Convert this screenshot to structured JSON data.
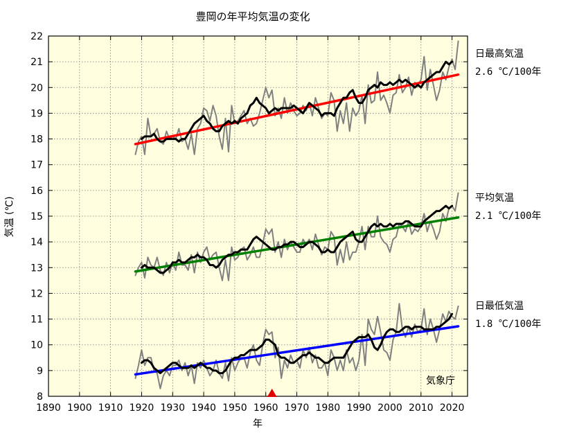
{
  "chart_data": {
    "type": "line",
    "title": "豊岡の年平均気温の変化",
    "xlabel": "年",
    "ylabel": "気温 (℃)",
    "xlim": [
      1890,
      2025
    ],
    "ylim": [
      8,
      22
    ],
    "x_ticks": [
      "1890",
      "1900",
      "1910",
      "1920",
      "1930",
      "1940",
      "1950",
      "1960",
      "1970",
      "1980",
      "1990",
      "2000",
      "2010",
      "2020"
    ],
    "y_ticks": [
      "8",
      "9",
      "10",
      "11",
      "12",
      "13",
      "14",
      "15",
      "16",
      "17",
      "18",
      "19",
      "20",
      "21",
      "22"
    ],
    "grid": true,
    "background_color": "#ffffe0",
    "credit": "気象庁",
    "station_change_marker_year": 1962,
    "marker_color": "#e00000",
    "colors": {
      "annual": "#808080",
      "moving_average": "#000000"
    },
    "series": [
      {
        "name": "日最高気温",
        "rate": "2.6 ℃/100年",
        "trend_color": "#ff0000",
        "annual_years": [
          1918,
          2022
        ],
        "annual": [
          17.4,
          17.9,
          18.1,
          17.4,
          18.8,
          18.1,
          18.2,
          18.4,
          17.9,
          17.8,
          18.3,
          18.0,
          18.1,
          18.0,
          18.4,
          17.9,
          18.0,
          17.6,
          18.2,
          17.4,
          18.4,
          18.6,
          19.2,
          19.1,
          18.7,
          19.3,
          18.9,
          18.1,
          17.6,
          18.8,
          17.5,
          19.3,
          18.6,
          18.7,
          18.9,
          19.1,
          18.6,
          18.8,
          18.5,
          18.6,
          19.0,
          19.5,
          20.0,
          19.6,
          19.9,
          18.9,
          19.2,
          18.8,
          19.6,
          19.0,
          19.4,
          19.1,
          18.9,
          19.0,
          19.3,
          19.1,
          19.4,
          18.9,
          19.6,
          19.2,
          18.8,
          19.0,
          18.9,
          19.8,
          19.5,
          18.3,
          19.1,
          18.6,
          19.4,
          18.3,
          19.2,
          18.9,
          19.1,
          19.7,
          18.6,
          20.1,
          19.4,
          19.5,
          20.6,
          19.5,
          19.7,
          19.4,
          19.0,
          19.7,
          19.8,
          20.5,
          19.8,
          20.0,
          20.4,
          19.7,
          20.2,
          20.1,
          20.3,
          21.2,
          19.9,
          20.7,
          20.1,
          19.5,
          19.9,
          20.6,
          20.3,
          20.8,
          21.1,
          20.7,
          21.8
        ],
        "moving_average_years": [
          1920,
          2020
        ],
        "moving_average": [
          18.0,
          18.1,
          18.1,
          18.1,
          18.2,
          18.0,
          17.9,
          17.9,
          18.0,
          18.0,
          18.0,
          18.0,
          17.9,
          18.0,
          18.0,
          18.2,
          18.4,
          18.6,
          18.7,
          18.8,
          18.9,
          18.7,
          18.6,
          18.4,
          18.3,
          18.3,
          18.5,
          18.6,
          18.7,
          18.6,
          18.7,
          18.6,
          18.8,
          18.9,
          19.0,
          19.3,
          19.4,
          19.6,
          19.4,
          19.3,
          19.2,
          19.0,
          19.1,
          19.2,
          19.1,
          19.2,
          19.2,
          19.2,
          19.2,
          19.3,
          19.2,
          19.1,
          19.0,
          19.2,
          19.4,
          19.3,
          19.2,
          19.1,
          18.9,
          19.0,
          19.0,
          19.0,
          18.9,
          19.2,
          19.4,
          19.6,
          19.6,
          19.8,
          19.9,
          19.6,
          19.4,
          19.4,
          19.6,
          19.9,
          20.0,
          20.1,
          20.0,
          20.2,
          20.1,
          20.1,
          20.2,
          20.1,
          20.2,
          20.3,
          20.2,
          20.3,
          20.2,
          20.1,
          20.0,
          20.1,
          20.0,
          20.2,
          20.3,
          20.4,
          20.5,
          20.6,
          20.6,
          20.8,
          21.0,
          20.9,
          21.0
        ],
        "trend": {
          "x": [
            1918,
            2022
          ],
          "y": [
            17.8,
            20.5
          ]
        }
      },
      {
        "name": "平均気温",
        "rate": "2.1 ℃/100年",
        "trend_color": "#008000",
        "annual_years": [
          1918,
          2022
        ],
        "annual": [
          12.7,
          13.0,
          13.2,
          12.6,
          13.4,
          13.1,
          13.0,
          13.4,
          12.9,
          12.7,
          13.2,
          12.8,
          13.2,
          12.9,
          13.6,
          13.1,
          13.1,
          12.9,
          13.5,
          12.8,
          13.6,
          13.2,
          13.6,
          13.8,
          13.3,
          13.5,
          13.6,
          13.0,
          12.5,
          13.3,
          12.5,
          13.8,
          13.3,
          13.4,
          13.7,
          13.8,
          13.3,
          13.5,
          13.8,
          13.4,
          13.4,
          13.9,
          14.5,
          14.3,
          14.5,
          13.6,
          14.0,
          13.4,
          14.1,
          13.7,
          14.0,
          13.8,
          13.6,
          13.6,
          14.1,
          13.9,
          14.1,
          13.7,
          14.3,
          13.9,
          13.5,
          13.8,
          13.7,
          14.4,
          14.2,
          13.1,
          13.7,
          13.2,
          14.0,
          13.3,
          13.6,
          13.6,
          14.0,
          14.6,
          13.7,
          14.6,
          14.2,
          14.2,
          15.0,
          14.2,
          14.0,
          13.9,
          13.6,
          14.1,
          14.2,
          14.7,
          14.6,
          14.4,
          14.8,
          14.3,
          14.5,
          14.4,
          14.6,
          15.1,
          14.4,
          14.8,
          14.5,
          14.1,
          14.4,
          15.1,
          14.8,
          15.3,
          15.4,
          15.2,
          15.9
        ],
        "moving_average_years": [
          1920,
          2020
        ],
        "moving_average": [
          13.0,
          13.1,
          13.0,
          13.0,
          13.0,
          12.9,
          12.8,
          12.8,
          12.9,
          13.0,
          13.2,
          13.2,
          13.3,
          13.2,
          13.2,
          13.3,
          13.4,
          13.4,
          13.5,
          13.4,
          13.4,
          13.3,
          13.1,
          13.1,
          13.0,
          13.1,
          13.3,
          13.4,
          13.5,
          13.5,
          13.6,
          13.6,
          13.7,
          13.7,
          13.7,
          13.9,
          14.1,
          14.2,
          14.1,
          14.0,
          13.9,
          13.8,
          13.7,
          13.7,
          13.8,
          13.8,
          13.9,
          13.9,
          14.0,
          14.0,
          13.9,
          13.8,
          13.8,
          13.9,
          14.0,
          14.0,
          13.9,
          13.8,
          13.6,
          13.6,
          13.7,
          13.6,
          13.6,
          13.8,
          14.0,
          14.1,
          14.2,
          14.3,
          14.4,
          14.1,
          14.0,
          14.0,
          14.2,
          14.4,
          14.6,
          14.7,
          14.6,
          14.7,
          14.6,
          14.6,
          14.7,
          14.6,
          14.7,
          14.7,
          14.7,
          14.8,
          14.8,
          14.7,
          14.6,
          14.6,
          14.6,
          14.8,
          14.9,
          15.0,
          15.1,
          15.2,
          15.2,
          15.3,
          15.4,
          15.3,
          15.4
        ],
        "trend": {
          "x": [
            1918,
            2022
          ],
          "y": [
            12.85,
            14.95
          ]
        }
      },
      {
        "name": "日最低気温",
        "rate": "1.8 ℃/100年",
        "trend_color": "#0000ff",
        "annual_years": [
          1918,
          2022
        ],
        "annual": [
          8.7,
          9.2,
          9.8,
          9.2,
          9.5,
          9.5,
          9.0,
          8.9,
          8.3,
          8.8,
          9.0,
          8.8,
          9.2,
          9.2,
          9.4,
          9.0,
          9.3,
          8.8,
          9.2,
          8.5,
          9.3,
          9.1,
          9.4,
          9.1,
          8.8,
          9.0,
          9.4,
          8.9,
          8.7,
          9.3,
          8.6,
          9.5,
          9.0,
          9.3,
          9.5,
          9.5,
          9.1,
          9.7,
          10.0,
          9.4,
          9.2,
          10.0,
          10.6,
          10.4,
          10.5,
          9.5,
          9.9,
          8.7,
          9.4,
          9.1,
          9.6,
          9.3,
          9.4,
          9.1,
          9.8,
          9.5,
          9.9,
          9.3,
          9.6,
          9.1,
          9.1,
          9.3,
          8.8,
          9.8,
          9.5,
          9.0,
          9.4,
          9.0,
          9.8,
          9.3,
          9.5,
          9.0,
          9.4,
          10.4,
          9.2,
          11.0,
          10.6,
          10.4,
          11.1,
          10.5,
          9.8,
          9.7,
          9.4,
          10.2,
          10.5,
          11.6,
          10.6,
          10.3,
          10.7,
          10.3,
          10.8,
          10.5,
          10.6,
          11.4,
          10.4,
          11.0,
          10.6,
          10.1,
          10.6,
          11.2,
          10.9,
          11.3,
          11.1,
          11.0,
          11.5
        ],
        "moving_average_years": [
          1920,
          2020
        ],
        "moving_average": [
          9.3,
          9.4,
          9.4,
          9.3,
          9.1,
          9.0,
          8.9,
          9.0,
          9.1,
          9.2,
          9.3,
          9.3,
          9.2,
          9.1,
          9.1,
          9.1,
          9.2,
          9.1,
          9.2,
          9.3,
          9.2,
          9.1,
          9.1,
          9.0,
          9.0,
          8.9,
          8.9,
          9.0,
          9.2,
          9.4,
          9.5,
          9.5,
          9.6,
          9.6,
          9.7,
          9.8,
          9.8,
          9.8,
          9.9,
          10.0,
          10.2,
          10.2,
          10.1,
          10.0,
          9.6,
          9.5,
          9.5,
          9.4,
          9.3,
          9.3,
          9.4,
          9.5,
          9.6,
          9.6,
          9.7,
          9.6,
          9.5,
          9.5,
          9.4,
          9.3,
          9.3,
          9.4,
          9.5,
          9.5,
          9.5,
          9.5,
          9.7,
          9.9,
          10.1,
          10.2,
          10.3,
          10.3,
          10.3,
          10.4,
          10.2,
          9.9,
          9.8,
          10.0,
          10.3,
          10.5,
          10.6,
          10.6,
          10.5,
          10.5,
          10.6,
          10.7,
          10.7,
          10.6,
          10.7,
          10.7,
          10.7,
          10.6,
          10.6,
          10.6,
          10.6,
          10.7,
          10.7,
          10.8,
          10.9,
          11.0,
          11.2
        ],
        "trend": {
          "x": [
            1918,
            2022
          ],
          "y": [
            8.85,
            10.72
          ]
        }
      }
    ]
  }
}
